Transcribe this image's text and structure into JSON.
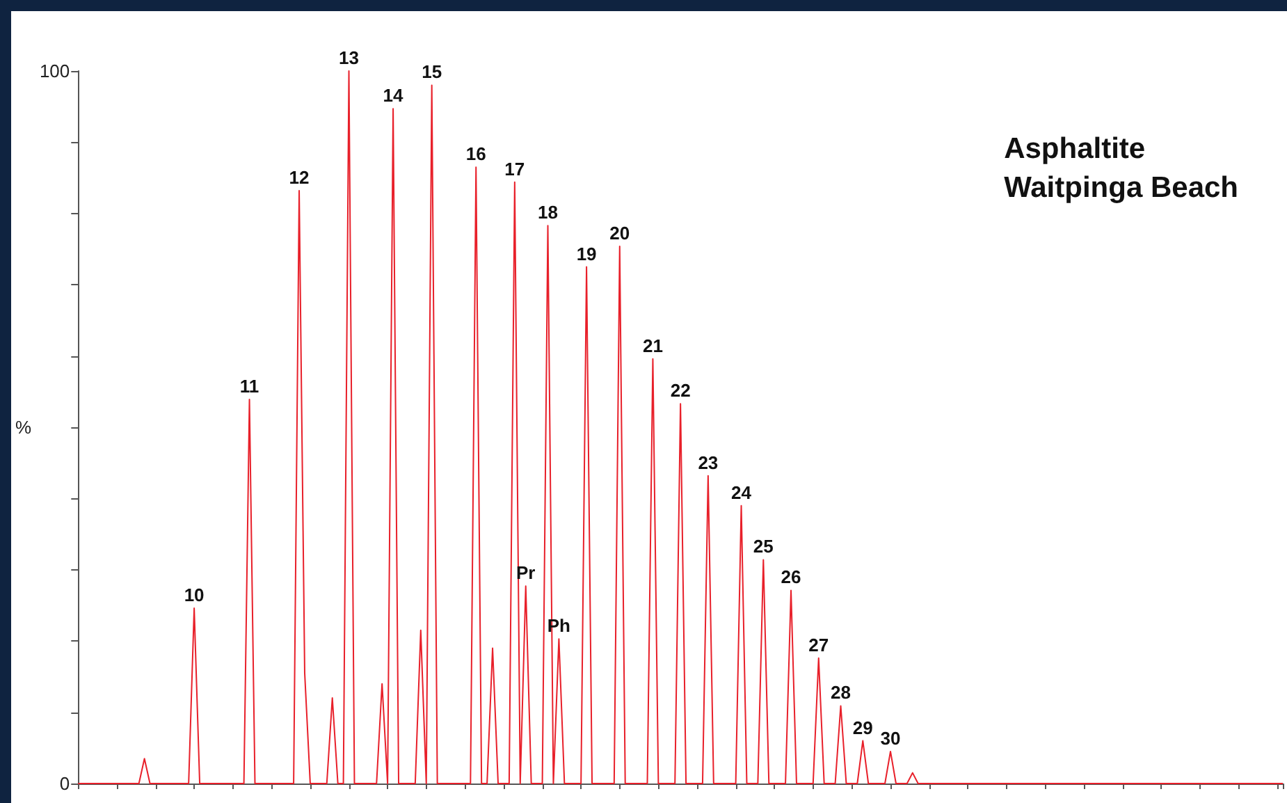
{
  "chart_data": {
    "type": "line",
    "title": "Asphaltite\nWaitpinga Beach",
    "ylabel": "%",
    "categories": [
      null,
      null,
      null,
      null,
      null,
      null,
      null,
      null,
      null,
      null,
      null,
      null,
      null,
      null,
      null,
      null,
      null,
      null,
      null,
      null,
      null,
      null,
      null,
      null,
      null,
      null,
      null,
      null,
      null,
      null,
      null,
      null,
      null,
      null,
      null,
      null,
      null,
      null,
      null,
      null,
      null,
      null,
      null,
      null,
      null,
      null,
      null,
      null,
      null,
      null,
      null,
      null,
      null,
      null,
      null,
      null,
      null,
      null,
      null,
      null,
      null,
      null,
      null,
      null,
      null,
      null,
      null,
      null,
      null,
      null,
      null,
      null,
      null,
      null,
      null,
      null,
      null,
      null,
      null,
      null,
      null,
      null,
      null,
      null,
      null,
      null,
      null,
      null,
      null,
      null,
      null,
      null,
      null,
      null,
      null,
      null,
      null,
      null,
      null,
      null,
      null,
      null,
      null,
      null,
      null,
      null,
      null,
      null,
      null,
      null,
      null,
      null,
      null,
      null,
      null,
      null,
      null,
      null,
      null,
      null,
      null,
      null,
      null,
      null,
      null,
      null,
      null,
      null,
      null,
      null,
      null,
      null,
      null,
      null,
      null,
      null,
      null,
      null,
      null,
      null,
      null,
      null,
      null,
      null,
      null,
      null,
      null,
      null,
      null,
      null,
      null,
      null,
      null,
      null,
      null,
      null,
      null,
      null,
      null,
      null,
      null,
      null,
      null,
      null,
      null,
      null,
      null,
      null,
      null,
      null,
      null,
      null,
      null,
      null,
      null,
      null,
      null,
      null,
      null,
      null,
      null,
      null,
      null,
      null,
      null,
      null,
      null,
      null,
      null,
      null,
      null,
      null,
      null,
      null,
      null,
      null,
      null,
      null,
      null,
      null,
      null,
      null,
      null,
      null,
      null,
      null,
      null,
      null,
      null,
      null,
      null,
      null,
      null,
      null,
      null,
      null,
      null,
      null,
      null
    ],
    "series": [
      {
        "color": "#e8202a",
        "values": [
          0,
          0,
          0,
          0,
          0,
          0,
          0,
          0,
          0,
          0,
          0,
          0,
          3.5,
          0,
          0,
          0,
          0,
          0,
          0,
          0,
          0,
          24.6,
          0,
          0,
          0,
          0,
          0,
          0,
          0,
          0,
          0,
          53.9,
          0,
          0,
          0,
          0,
          0,
          0,
          0,
          0,
          83.2,
          15.5,
          0,
          0,
          0,
          0,
          12,
          0,
          0,
          100,
          0,
          0,
          0,
          0,
          0,
          14,
          0,
          94.7,
          0,
          0,
          0,
          0,
          21.5,
          0,
          98,
          0,
          0,
          0,
          0,
          0,
          0,
          0,
          86.5,
          0,
          0,
          19,
          0,
          0,
          0,
          84.4,
          0,
          27.7,
          0,
          0,
          0,
          78.3,
          0,
          20.3,
          0,
          0,
          0,
          0,
          72.5,
          0,
          0,
          0,
          0,
          0,
          75.4,
          0,
          0,
          0,
          0,
          0,
          59.6,
          0,
          0,
          0,
          0,
          53.3,
          0,
          0,
          0,
          0,
          43.2,
          0,
          0,
          0,
          0,
          0,
          39,
          0,
          0,
          0,
          31.4,
          0,
          0,
          0,
          0,
          27.1,
          0,
          0,
          0,
          0,
          17.6,
          0,
          0,
          0,
          10.9,
          0,
          0,
          0,
          6,
          0,
          0,
          0,
          0,
          4.5,
          0,
          0,
          0,
          1.5,
          0,
          0,
          0,
          0,
          0,
          0,
          0,
          0,
          0,
          0,
          0,
          0,
          0,
          0,
          0,
          0,
          0,
          0,
          0,
          0,
          0,
          0,
          0,
          0,
          0,
          0,
          0,
          0,
          0,
          0,
          0,
          0,
          0,
          0,
          0,
          0,
          0,
          0,
          0,
          0,
          0,
          0,
          0,
          0,
          0,
          0,
          0,
          0,
          0,
          0,
          0,
          0,
          0,
          0,
          0,
          0,
          0,
          0,
          0,
          0,
          0,
          0,
          0,
          0,
          0,
          0,
          0
        ]
      }
    ],
    "annotations": [
      {
        "text": "10",
        "y": 24.6
      },
      {
        "text": "11",
        "y": 53.9
      },
      {
        "text": "12",
        "y": 83.2
      },
      {
        "text": "13",
        "y": 100
      },
      {
        "text": "14",
        "y": 94.7
      },
      {
        "text": "15",
        "y": 98
      },
      {
        "text": "16",
        "y": 86.5
      },
      {
        "text": "17",
        "y": 84.4
      },
      {
        "text": "Pr",
        "y": 27.7
      },
      {
        "text": "18",
        "y": 78.3
      },
      {
        "text": "Ph",
        "y": 20.3
      },
      {
        "text": "19",
        "y": 72.5
      },
      {
        "text": "20",
        "y": 75.4
      },
      {
        "text": "21",
        "y": 59.6
      },
      {
        "text": "22",
        "y": 53.3
      },
      {
        "text": "23",
        "y": 43.2
      },
      {
        "text": "24",
        "y": 39
      },
      {
        "text": "25",
        "y": 31.4
      },
      {
        "text": "26",
        "y": 27.1
      },
      {
        "text": "27",
        "y": 17.6
      },
      {
        "text": "28",
        "y": 10.9
      },
      {
        "text": "29",
        "y": 6
      },
      {
        "text": "30",
        "y": 4.5
      }
    ],
    "ylim": [
      0,
      100
    ],
    "yticks": [
      0,
      {
        "value": 10,
        "label": null
      },
      {
        "value": 20,
        "label": null
      },
      {
        "value": 30,
        "label": null
      },
      {
        "value": 40,
        "label": null
      },
      {
        "value": 50,
        "label": null
      },
      {
        "value": 60,
        "label": null
      },
      {
        "value": 70,
        "label": null
      },
      {
        "value": 80,
        "label": null
      },
      {
        "value": 90,
        "label": null
      },
      100
    ]
  }
}
